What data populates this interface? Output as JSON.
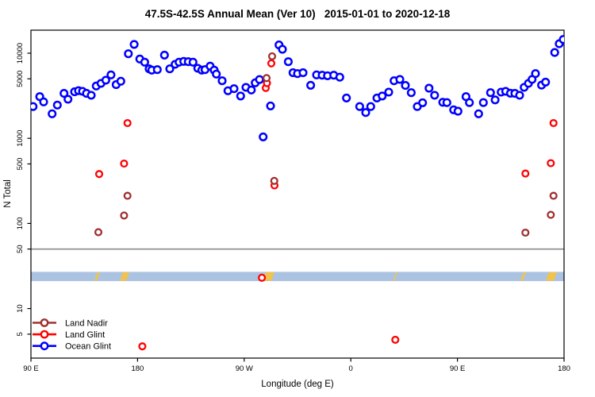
{
  "title": "47.5S-42.5S Annual Mean (Ver 10)   2015-01-01 to 2020-12-18",
  "chart_data": {
    "type": "scatter",
    "title": "47.5S-42.5S Annual Mean (Ver 10)   2015-01-01 to 2020-12-18",
    "xlabel": "Longitude (deg E)",
    "ylabel": "N Total",
    "x_axis": {
      "range_deg": [
        90,
        540
      ],
      "ticks": [
        {
          "deg": 90,
          "label": "90 E"
        },
        {
          "deg": 180,
          "label": "180"
        },
        {
          "deg": 270,
          "label": "90 W"
        },
        {
          "deg": 360,
          "label": "0"
        },
        {
          "deg": 450,
          "label": "90 E"
        },
        {
          "deg": 540,
          "label": "180"
        }
      ]
    },
    "y_axis": {
      "scale": "log10",
      "range": [
        2.56,
        18600
      ],
      "ticks": [
        10000,
        5000,
        1000,
        500,
        100,
        50,
        10,
        5
      ]
    },
    "reference_line_y": 50,
    "reference_line_color": "#8a8a8a",
    "surface_strip": {
      "value_range": [
        21,
        27
      ],
      "ocean_color": "#abc3e1",
      "land_color": "#f2c34c",
      "land_segments_deg": [
        [
          143.6,
          148.3
        ],
        [
          165.0,
          173.0
        ],
        [
          285.6,
          295.6
        ],
        [
          396.7,
          398.2
        ],
        [
          503.2,
          507.9
        ],
        [
          524.6,
          534.0
        ]
      ]
    },
    "legend": {
      "position": "bottom-left",
      "entries": [
        "Land Nadir",
        "Land Glint",
        "Ocean Glint"
      ]
    },
    "series": [
      {
        "name": "Ocean Glint",
        "color": "#0000ff",
        "marker": "open-circle",
        "points": [
          [
            91.8,
            2360
          ],
          [
            97.4,
            3090
          ],
          [
            100.7,
            2680
          ],
          [
            107.9,
            1940
          ],
          [
            112.3,
            2460
          ],
          [
            117.9,
            3370
          ],
          [
            121.3,
            2880
          ],
          [
            126.8,
            3520
          ],
          [
            130.2,
            3630
          ],
          [
            133.5,
            3570
          ],
          [
            136.9,
            3370
          ],
          [
            140.9,
            3200
          ],
          [
            145.1,
            4120
          ],
          [
            149.1,
            4420
          ],
          [
            153.2,
            4820
          ],
          [
            157.6,
            5560
          ],
          [
            161.9,
            4270
          ],
          [
            165.9,
            4680
          ],
          [
            172.2,
            9850
          ],
          [
            177.1,
            12700
          ],
          [
            181.9,
            8550
          ],
          [
            186.0,
            7850
          ],
          [
            189.8,
            6550
          ],
          [
            192.0,
            6330
          ],
          [
            196.7,
            6410
          ],
          [
            202.7,
            9500
          ],
          [
            207.2,
            6550
          ],
          [
            211.7,
            7400
          ],
          [
            215.0,
            7850
          ],
          [
            219.0,
            8020
          ],
          [
            222.8,
            7950
          ],
          [
            226.8,
            7850
          ],
          [
            230.8,
            6650
          ],
          [
            234.2,
            6330
          ],
          [
            236.9,
            6410
          ],
          [
            241.3,
            7050
          ],
          [
            244.7,
            6330
          ],
          [
            246.5,
            5690
          ],
          [
            251.4,
            4750
          ],
          [
            256.3,
            3620
          ],
          [
            261.4,
            3830
          ],
          [
            267.0,
            3140
          ],
          [
            271.5,
            3970
          ],
          [
            276.0,
            3700
          ],
          [
            279.3,
            4490
          ],
          [
            282.9,
            4900
          ],
          [
            286.0,
            1040
          ],
          [
            292.2,
            2400
          ],
          [
            299.4,
            12500
          ],
          [
            302.3,
            11100
          ],
          [
            307.2,
            7950
          ],
          [
            311.2,
            5890
          ],
          [
            315.0,
            5760
          ],
          [
            319.7,
            5890
          ],
          [
            326.1,
            4200
          ],
          [
            331.1,
            5560
          ],
          [
            335.8,
            5510
          ],
          [
            340.3,
            5430
          ],
          [
            345.6,
            5510
          ],
          [
            350.7,
            5230
          ],
          [
            356.3,
            2980
          ],
          [
            367.5,
            2360
          ],
          [
            372.6,
            2010
          ],
          [
            376.8,
            2360
          ],
          [
            382.0,
            2980
          ],
          [
            386.5,
            3140
          ],
          [
            392.0,
            3490
          ],
          [
            396.5,
            4750
          ],
          [
            401.4,
            4920
          ],
          [
            406.1,
            4180
          ],
          [
            411.0,
            3440
          ],
          [
            416.1,
            2360
          ],
          [
            420.6,
            2620
          ],
          [
            426.0,
            3880
          ],
          [
            430.7,
            3200
          ],
          [
            437.6,
            2650
          ],
          [
            441.1,
            2630
          ],
          [
            446.8,
            2160
          ],
          [
            450.5,
            2080
          ],
          [
            457.2,
            3090
          ],
          [
            460.1,
            2630
          ],
          [
            467.9,
            1940
          ],
          [
            471.9,
            2630
          ],
          [
            477.9,
            3440
          ],
          [
            481.8,
            2830
          ],
          [
            486.9,
            3490
          ],
          [
            490.7,
            3570
          ],
          [
            494.7,
            3390
          ],
          [
            498.5,
            3370
          ],
          [
            502.5,
            3200
          ],
          [
            506.3,
            3970
          ],
          [
            509.9,
            4420
          ],
          [
            513.0,
            4920
          ],
          [
            515.9,
            5760
          ],
          [
            521.0,
            4220
          ],
          [
            524.4,
            4580
          ],
          [
            532.1,
            10200
          ],
          [
            535.9,
            12900
          ],
          [
            539.3,
            14500
          ]
        ]
      },
      {
        "name": "Land Glint",
        "color": "#ff0000",
        "marker": "open-circle",
        "points": [
          [
            147.6,
            380
          ],
          [
            168.6,
            505
          ],
          [
            171.5,
            1510
          ],
          [
            184.0,
            3.6
          ],
          [
            284.9,
            23
          ],
          [
            288.2,
            3900
          ],
          [
            289.2,
            4450
          ],
          [
            292.9,
            7600
          ],
          [
            295.6,
            280
          ],
          [
            397.6,
            4.3
          ],
          [
            507.4,
            385
          ],
          [
            528.8,
            510
          ],
          [
            531.1,
            1510
          ]
        ]
      },
      {
        "name": "Land Nadir",
        "color": "#a03030",
        "marker": "open-circle",
        "points": [
          [
            146.9,
            79
          ],
          [
            168.6,
            124
          ],
          [
            171.5,
            211
          ],
          [
            288.9,
            5100
          ],
          [
            293.6,
            9200
          ],
          [
            295.4,
            316
          ],
          [
            507.4,
            78
          ],
          [
            528.8,
            126
          ],
          [
            531.1,
            211
          ]
        ]
      }
    ]
  },
  "layout_note": ""
}
